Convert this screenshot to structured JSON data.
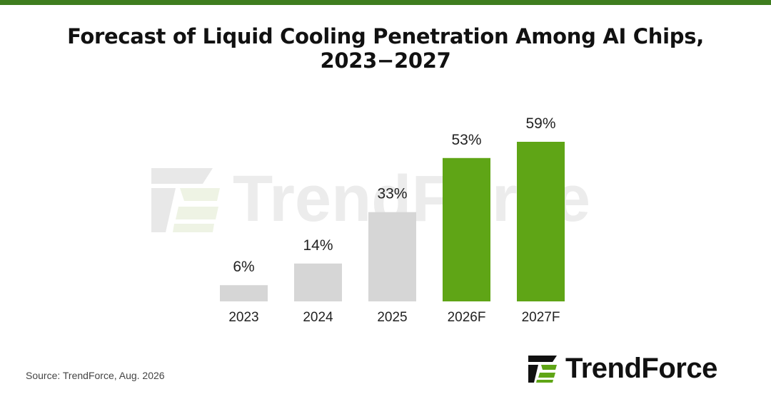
{
  "title": "Forecast of Liquid Cooling Penetration Among AI Chips, 2023−2027",
  "source": "Source: TrendForce, Aug. 2026",
  "logo": {
    "text": "TrendForce",
    "icon": "trendforce-logo-icon"
  },
  "watermark": {
    "text": "TrendForce"
  },
  "colors": {
    "accent": "#3f7d1f",
    "actual_bar": "#d6d6d6",
    "forecast_bar": "#5fa516",
    "watermark": "#ececec"
  },
  "chart_data": {
    "type": "bar",
    "title": "Forecast of Liquid Cooling Penetration Among AI Chips, 2023−2027",
    "xlabel": "",
    "ylabel": "",
    "ylim": [
      0,
      60
    ],
    "grid": false,
    "categories": [
      "2023",
      "2024",
      "2025",
      "2026F",
      "2027F"
    ],
    "values": [
      6,
      14,
      33,
      53,
      59
    ],
    "data_labels": [
      "6%",
      "14%",
      "33%",
      "53%",
      "59%"
    ],
    "forecast": [
      false,
      false,
      false,
      true,
      true
    ]
  }
}
